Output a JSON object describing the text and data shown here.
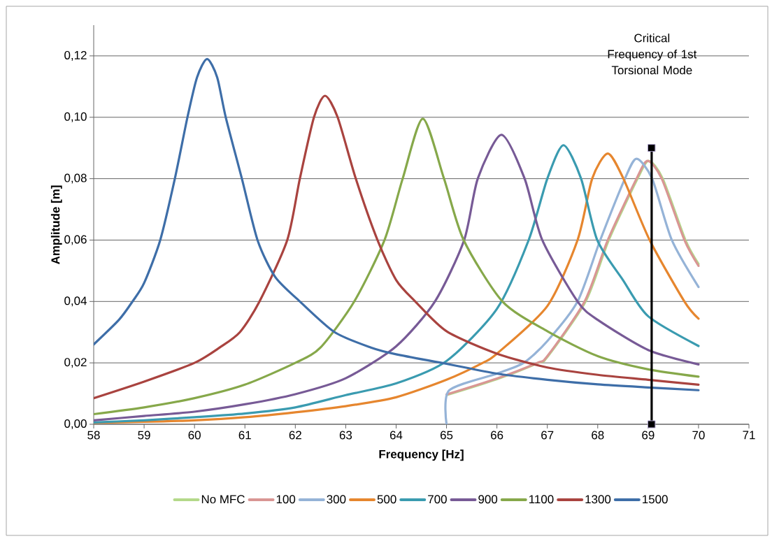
{
  "chart_data": {
    "type": "line",
    "xlabel": "Frequency [Hz]",
    "ylabel": "Amplitude [m]",
    "xlim": [
      58,
      71
    ],
    "xticks": [
      58,
      59,
      60,
      61,
      62,
      63,
      64,
      65,
      66,
      67,
      68,
      69,
      70,
      71
    ],
    "ylim": [
      0,
      0.13
    ],
    "yticks": [
      {
        "value": 0,
        "label": "0,00"
      },
      {
        "value": 0.02,
        "label": "0,02"
      },
      {
        "value": 0.04,
        "label": "0,04"
      },
      {
        "value": 0.06,
        "label": "0,06"
      },
      {
        "value": 0.08,
        "label": "0,08"
      },
      {
        "value": 0.1,
        "label": "0,10"
      },
      {
        "value": 0.12,
        "label": "0,12"
      }
    ],
    "grid": "y",
    "legend": "bottom",
    "annotations": [
      "Critical Frequency of 1st Torsional Mode"
    ],
    "series": [
      {
        "name": "No MFC",
        "color": "#b4d98a",
        "x": [
          65,
          66,
          66.82,
          67,
          67.76,
          68.22,
          68.79,
          69.01,
          69.29,
          69.74,
          70
        ],
        "values": [
          0.0095,
          0.0147,
          0.02,
          0.0219,
          0.04,
          0.06,
          0.08,
          0.0858,
          0.08,
          0.06,
          0.0522
        ]
      },
      {
        "name": "100",
        "color": "#d99694",
        "x": [
          65,
          66,
          66.8,
          67,
          67.74,
          68.2,
          68.77,
          68.99,
          69.27,
          69.72,
          70
        ],
        "values": [
          0.0097,
          0.0149,
          0.02,
          0.0222,
          0.04,
          0.06,
          0.08,
          0.0858,
          0.08,
          0.06,
          0.0516
        ]
      },
      {
        "name": "300",
        "color": "#95b3d7",
        "x": [
          65,
          65.05,
          66,
          66.53,
          67,
          67.6,
          68.05,
          68.54,
          68.77,
          69.08,
          69.47,
          70
        ],
        "values": [
          0,
          0.011,
          0.0165,
          0.02,
          0.0271,
          0.04,
          0.06,
          0.08,
          0.0865,
          0.08,
          0.06,
          0.0447
        ]
      },
      {
        "name": "500",
        "color": "#e6862e",
        "x": [
          58,
          59,
          60,
          61,
          62,
          63,
          64,
          65,
          65.72,
          66,
          67,
          67.6,
          67.89,
          68.2,
          68.51,
          69.03,
          69.72,
          70
        ],
        "values": [
          0.0005,
          0.0008,
          0.0013,
          0.0023,
          0.0039,
          0.0059,
          0.0088,
          0.0145,
          0.02,
          0.023,
          0.0385,
          0.06,
          0.08,
          0.0882,
          0.08,
          0.06,
          0.04,
          0.0344
        ]
      },
      {
        "name": "700",
        "color": "#3a9bb0",
        "x": [
          58,
          59,
          60,
          61,
          62,
          63,
          64,
          65,
          66,
          66.63,
          67,
          67.32,
          67.67,
          67.99,
          68.5,
          69,
          70
        ],
        "values": [
          0.0006,
          0.0013,
          0.0023,
          0.0035,
          0.0055,
          0.0095,
          0.0133,
          0.0206,
          0.0376,
          0.06,
          0.08,
          0.0909,
          0.08,
          0.06,
          0.047,
          0.0352,
          0.0255
        ]
      },
      {
        "name": "900",
        "color": "#775a96",
        "x": [
          58,
          59,
          60,
          61,
          62,
          63,
          64,
          64.77,
          65.35,
          65.62,
          66.09,
          66.55,
          66.9,
          67.6,
          68,
          69,
          70
        ],
        "values": [
          0.0013,
          0.0027,
          0.0041,
          0.0065,
          0.0098,
          0.015,
          0.0254,
          0.04,
          0.06,
          0.08,
          0.0943,
          0.08,
          0.06,
          0.04,
          0.034,
          0.0242,
          0.0195
        ]
      },
      {
        "name": "1100",
        "color": "#86a84a",
        "x": [
          58,
          59,
          60,
          61,
          62,
          62.5,
          63.17,
          63.77,
          64.13,
          64.53,
          64.95,
          65.34,
          66.11,
          67,
          68,
          69,
          70
        ],
        "values": [
          0.0033,
          0.0055,
          0.0085,
          0.0129,
          0.02,
          0.025,
          0.04,
          0.06,
          0.08,
          0.0995,
          0.08,
          0.06,
          0.04,
          0.0303,
          0.0222,
          0.0179,
          0.0155
        ]
      },
      {
        "name": "1300",
        "color": "#a9433f",
        "x": [
          58,
          59,
          60,
          60.5,
          60.9,
          61.29,
          61.84,
          62.09,
          62.37,
          62.59,
          62.84,
          63.2,
          63.63,
          64,
          64.38,
          65,
          66,
          67,
          68,
          69,
          70
        ],
        "values": [
          0.0085,
          0.0139,
          0.02,
          0.025,
          0.03,
          0.04,
          0.06,
          0.08,
          0.1,
          0.107,
          0.1,
          0.08,
          0.06,
          0.047,
          0.04,
          0.0303,
          0.023,
          0.0185,
          0.0161,
          0.0145,
          0.0129
        ]
      },
      {
        "name": "1500",
        "color": "#3e6ea8",
        "x": [
          58,
          58.5,
          58.77,
          59,
          59.32,
          59.61,
          59.86,
          60.05,
          60.25,
          60.45,
          60.62,
          60.94,
          61.25,
          61.6,
          62.09,
          62.78,
          63.5,
          64,
          65,
          66,
          67,
          68,
          69,
          70
        ],
        "values": [
          0.026,
          0.034,
          0.04,
          0.046,
          0.06,
          0.08,
          0.1,
          0.113,
          0.119,
          0.113,
          0.1,
          0.08,
          0.06,
          0.048,
          0.04,
          0.03,
          0.025,
          0.0228,
          0.0197,
          0.0165,
          0.0145,
          0.013,
          0.012,
          0.0111
        ]
      },
      {
        "color": "#000000",
        "marker": "square",
        "x": [
          69.07,
          69.07
        ],
        "values": [
          0,
          0.09
        ]
      }
    ]
  }
}
